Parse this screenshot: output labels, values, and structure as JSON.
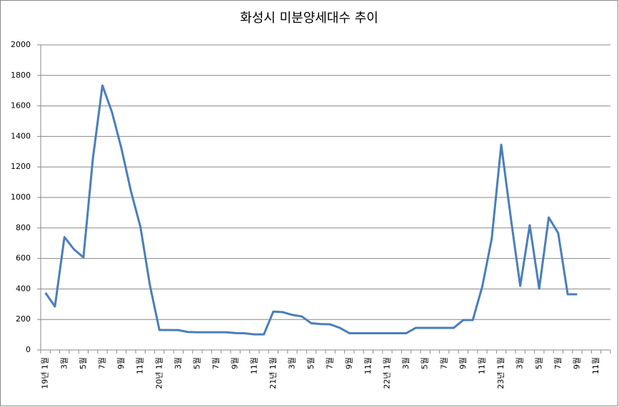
{
  "chart_data": {
    "type": "line",
    "title": "화성시 미분양세대수 추이",
    "categories": [
      "19년 1월",
      null,
      "3월",
      null,
      "5월",
      null,
      "7월",
      null,
      "9월",
      null,
      "11월",
      null,
      "20년 1월",
      null,
      "3월",
      null,
      "5월",
      null,
      "7월",
      null,
      "9월",
      null,
      "11월",
      null,
      "21년 1월",
      null,
      "3월",
      null,
      "5월",
      null,
      "7월",
      null,
      "9월",
      null,
      "11월",
      null,
      "22년 1월",
      null,
      "3월",
      null,
      "5월",
      null,
      "7월",
      null,
      "9월",
      null,
      "11월",
      null,
      "23년 1월",
      null,
      "3월",
      null,
      "5월",
      null,
      "7월",
      null,
      "9월",
      null,
      "11월",
      null
    ],
    "series": [
      {
        "name": "미분양세대수",
        "color": "#4a7ebb",
        "values": [
          375,
          285,
          740,
          660,
          607,
          1257,
          1734,
          1560,
          1322,
          1042,
          808,
          425,
          131,
          131,
          130,
          118,
          116,
          116,
          116,
          116,
          111,
          109,
          102,
          102,
          252,
          248,
          230,
          220,
          175,
          170,
          168,
          145,
          110,
          110,
          110,
          110,
          110,
          110,
          110,
          145,
          145,
          145,
          145,
          145,
          196,
          196,
          415,
          730,
          1346,
          870,
          420,
          818,
          402,
          869,
          766,
          365,
          365,
          null,
          null,
          null
        ]
      }
    ],
    "ylim": [
      0,
      2000
    ],
    "yticks": [
      0,
      200,
      400,
      600,
      800,
      1000,
      1200,
      1400,
      1600,
      1800,
      2000
    ],
    "grid": true
  }
}
